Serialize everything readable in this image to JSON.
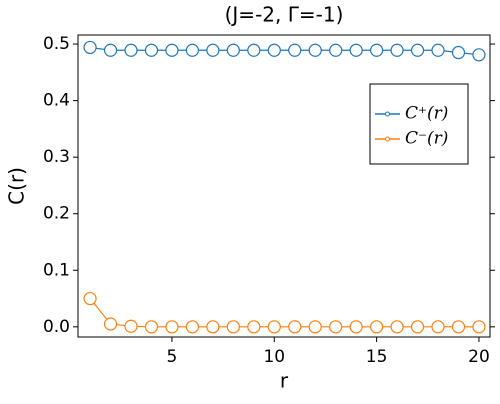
{
  "chart_data": {
    "type": "line",
    "title": "(J=-2, Γ=-1)",
    "xlabel": "r",
    "ylabel": "C(r)",
    "x": [
      1,
      2,
      3,
      4,
      5,
      6,
      7,
      8,
      9,
      10,
      11,
      12,
      13,
      14,
      15,
      16,
      17,
      18,
      19,
      20
    ],
    "series": [
      {
        "name": "C⁺(r)",
        "color": "#1f77b4",
        "values": [
          0.494,
          0.489,
          0.489,
          0.489,
          0.489,
          0.489,
          0.489,
          0.489,
          0.489,
          0.489,
          0.489,
          0.489,
          0.489,
          0.489,
          0.489,
          0.489,
          0.489,
          0.489,
          0.485,
          0.481
        ]
      },
      {
        "name": "C⁻(r)",
        "color": "#ff7f0e",
        "values": [
          0.05,
          0.005,
          0.001,
          0,
          0,
          0,
          0,
          0,
          0,
          0,
          0,
          0,
          0,
          0,
          0,
          0,
          0,
          0,
          0,
          0
        ]
      }
    ],
    "xlim": [
      0.41,
      20.54
    ],
    "ylim": [
      -0.018,
      0.516
    ],
    "xticks": [
      5,
      10,
      15,
      20
    ],
    "yticks": [
      {
        "value": 0,
        "label": "0.0"
      },
      0.1,
      0.2,
      0.3,
      0.4,
      0.5
    ],
    "legend": "upper right"
  }
}
